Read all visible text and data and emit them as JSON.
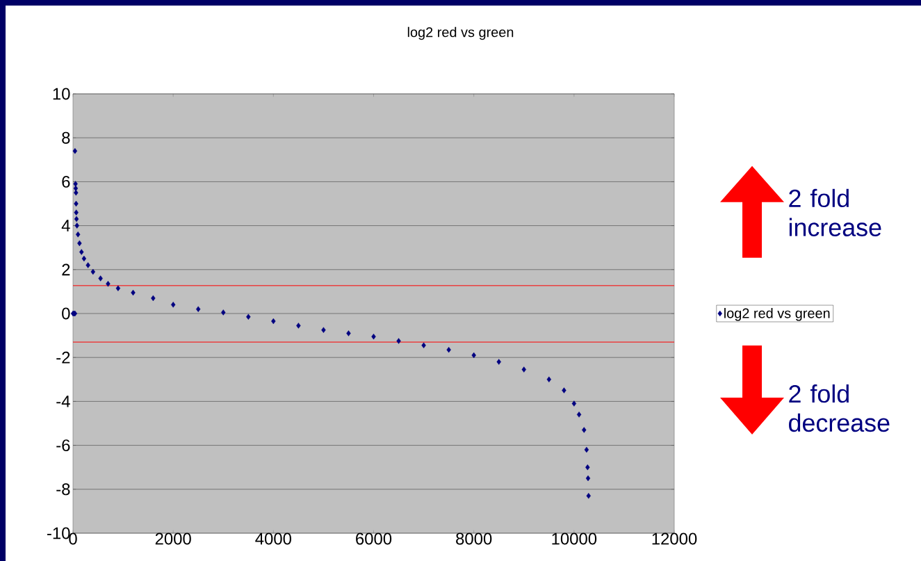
{
  "chart_data": {
    "type": "scatter",
    "title": "log2 red vs green",
    "x": [
      0,
      20,
      40,
      40,
      50,
      55,
      60,
      62,
      65,
      70,
      80,
      100,
      130,
      170,
      220,
      300,
      400,
      550,
      700,
      900,
      1200,
      1600,
      2000,
      2500,
      3000,
      3500,
      4000,
      4500,
      5000,
      5500,
      6000,
      6500,
      7000,
      7500,
      8000,
      8500,
      9000,
      9500,
      9800,
      10000,
      10100,
      10200,
      10250,
      10270,
      10280,
      10290
    ],
    "series": [
      {
        "name": "log2 red vs green",
        "color": "#000080",
        "values": [
          0,
          0,
          0,
          7.4,
          5.9,
          5.7,
          5.5,
          5.0,
          4.6,
          4.3,
          4.0,
          3.6,
          3.2,
          2.8,
          2.5,
          2.2,
          1.9,
          1.6,
          1.35,
          1.15,
          0.95,
          0.7,
          0.4,
          0.2,
          0.05,
          -0.15,
          -0.35,
          -0.55,
          -0.75,
          -0.9,
          -1.05,
          -1.25,
          -1.45,
          -1.65,
          -1.9,
          -2.2,
          -2.55,
          -3.0,
          -3.5,
          -4.1,
          -4.6,
          -5.3,
          -6.2,
          -7.0,
          -7.5,
          -8.3
        ]
      }
    ],
    "xlim": [
      0,
      12000
    ],
    "ylim": [
      -10,
      10
    ],
    "xticks": [
      0,
      2000,
      4000,
      6000,
      8000,
      10000,
      12000
    ],
    "yticks": [
      -10,
      -8,
      -6,
      -4,
      -2,
      0,
      2,
      4,
      6,
      8,
      10
    ],
    "grid": "y",
    "legend": "right",
    "marker": "diamond",
    "ref_lines": [
      {
        "axis": "y",
        "value": 1.27,
        "color": "#ff0000"
      },
      {
        "axis": "y",
        "value": -1.3,
        "color": "#ff0000"
      }
    ],
    "annotations": [
      "2 fold increase",
      "2 fold decrease"
    ]
  }
}
